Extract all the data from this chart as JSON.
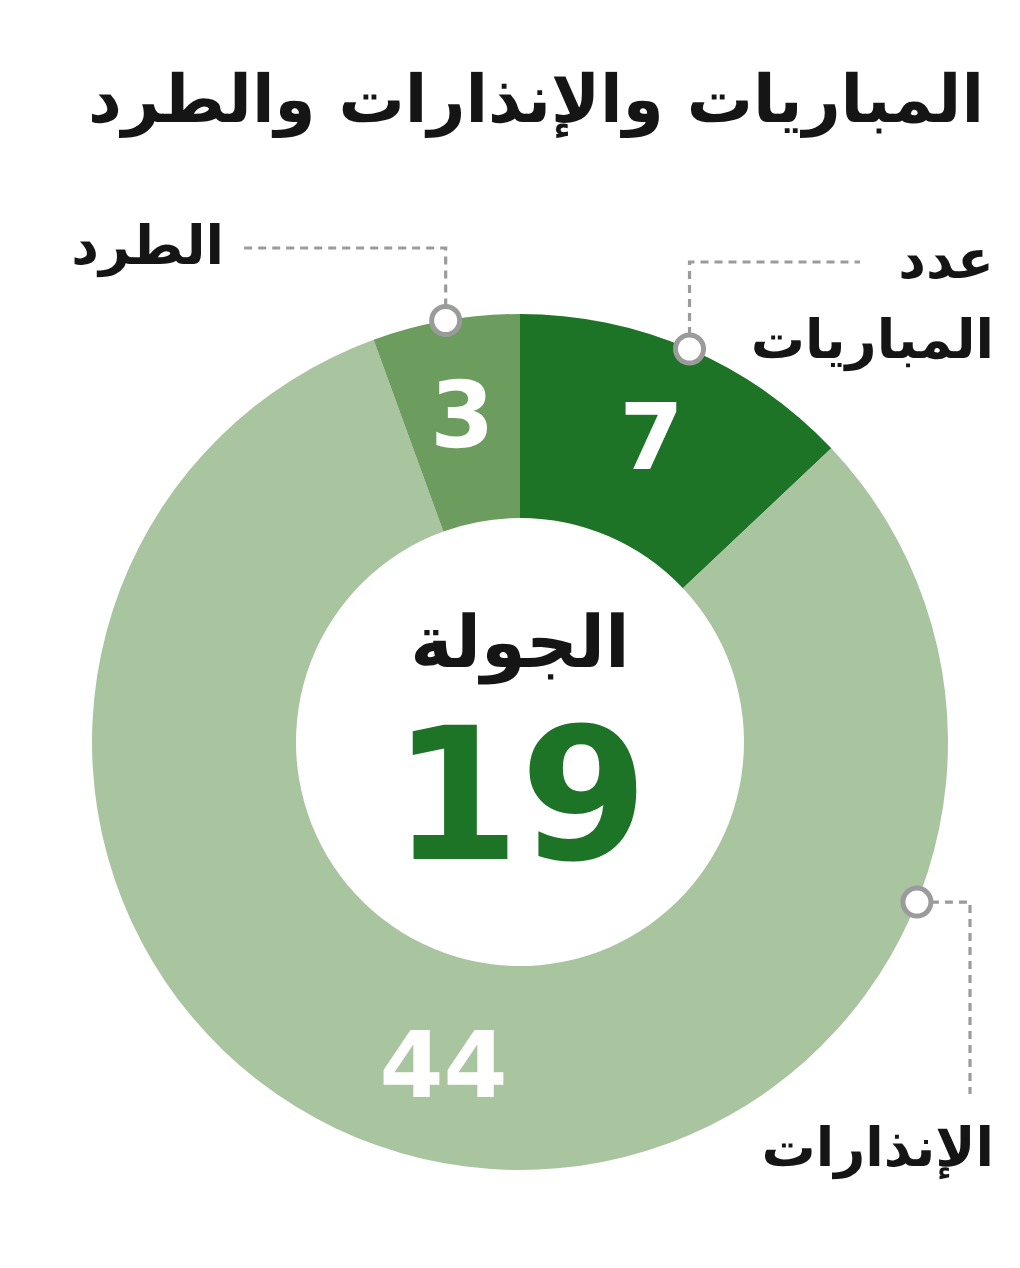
{
  "chart_data": {
    "type": "donut",
    "title": "المباريات والإنذارات والطرد",
    "categories": [
      "عدد المباريات",
      "الإنذارات",
      "الطرد"
    ],
    "values": [
      7,
      44,
      3
    ],
    "colors": [
      "#1d7326",
      "#a9c5a0",
      "#6c9c5e"
    ],
    "data_labels": true,
    "annotations": [
      "الجولة",
      "19"
    ]
  }
}
